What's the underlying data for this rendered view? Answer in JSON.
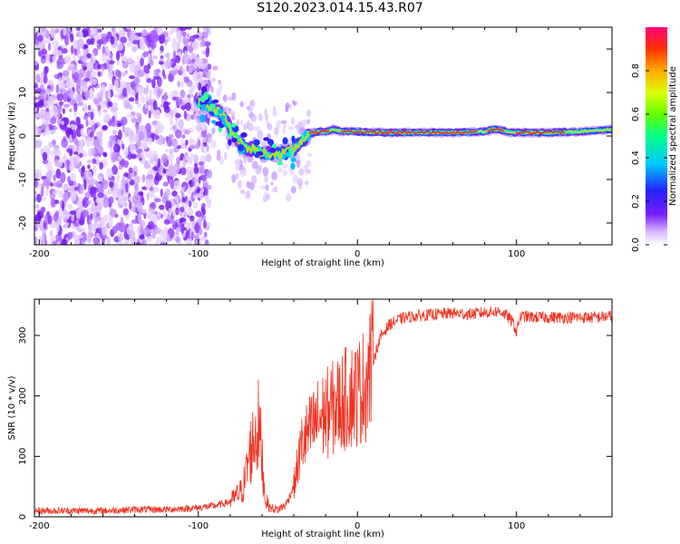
{
  "title": "S120.2023.014.15.43.R07",
  "colors": {
    "snr_line": "#ee3322",
    "background": "#ffffff"
  },
  "chart_data": [
    {
      "type": "heatmap",
      "name": "spectrogram",
      "xlabel": "Height of straight line (km)",
      "ylabel": "Frequency (Hz)",
      "xlim": [
        -203,
        160
      ],
      "ylim": [
        -25,
        25
      ],
      "xticks": [
        -200,
        -100,
        0,
        100
      ],
      "yticks": [
        -20,
        -10,
        0,
        10,
        20
      ],
      "ridge": {
        "x": [
          -100,
          -90,
          -85,
          -80,
          -75,
          -70,
          -65,
          -60,
          -55,
          -50,
          -45,
          -40,
          -35,
          -30,
          -25,
          -20,
          -15,
          -10,
          -5,
          0,
          10,
          20,
          40,
          60,
          80,
          85,
          90,
          95,
          100,
          120,
          140,
          160
        ],
        "y": [
          8,
          6,
          5,
          2,
          -1,
          -3,
          -3,
          -4,
          -4,
          -4,
          -4,
          -3,
          -1,
          0.5,
          1,
          1,
          1.5,
          1,
          1,
          1,
          0.8,
          0.8,
          0.8,
          0.8,
          1,
          1.5,
          1.5,
          0.8,
          0.8,
          0.8,
          1,
          1.5
        ]
      },
      "colorbar": {
        "label": "Normalized spectral amplitude",
        "range": [
          0,
          1
        ],
        "ticks": [
          0.0,
          0.2,
          0.4,
          0.6,
          0.8
        ],
        "tick_labels": [
          "0.0",
          "0.2",
          "0.4",
          "0.6",
          "0.8"
        ]
      }
    },
    {
      "type": "line",
      "name": "snr",
      "xlabel": "Height of straight line (km)",
      "ylabel": "SNR (10 * v/v)",
      "xlim": [
        -203,
        160
      ],
      "ylim": [
        0,
        360
      ],
      "xticks": [
        -200,
        -100,
        0,
        100
      ],
      "yticks": [
        0,
        100,
        200,
        300
      ],
      "series": [
        {
          "x": [
            -203,
            -180,
            -160,
            -140,
            -120,
            -100,
            -90,
            -80,
            -72,
            -68,
            -65,
            -62,
            -60,
            -58,
            -55,
            -50,
            -45,
            -40,
            -35,
            -30,
            -25,
            -20,
            -15,
            -10,
            -5,
            0,
            5,
            10,
            15,
            20,
            25,
            30,
            40,
            50,
            60,
            70,
            80,
            90,
            95,
            98,
            100,
            102,
            105,
            110,
            120,
            130,
            140,
            150,
            160
          ],
          "values": [
            10,
            10,
            10,
            12,
            12,
            15,
            18,
            25,
            45,
            100,
            130,
            150,
            100,
            30,
            15,
            12,
            20,
            50,
            120,
            140,
            160,
            170,
            180,
            190,
            200,
            205,
            220,
            260,
            300,
            318,
            325,
            330,
            333,
            335,
            337,
            335,
            338,
            340,
            330,
            320,
            305,
            330,
            332,
            330,
            330,
            330,
            330,
            330,
            332
          ]
        }
      ]
    }
  ]
}
